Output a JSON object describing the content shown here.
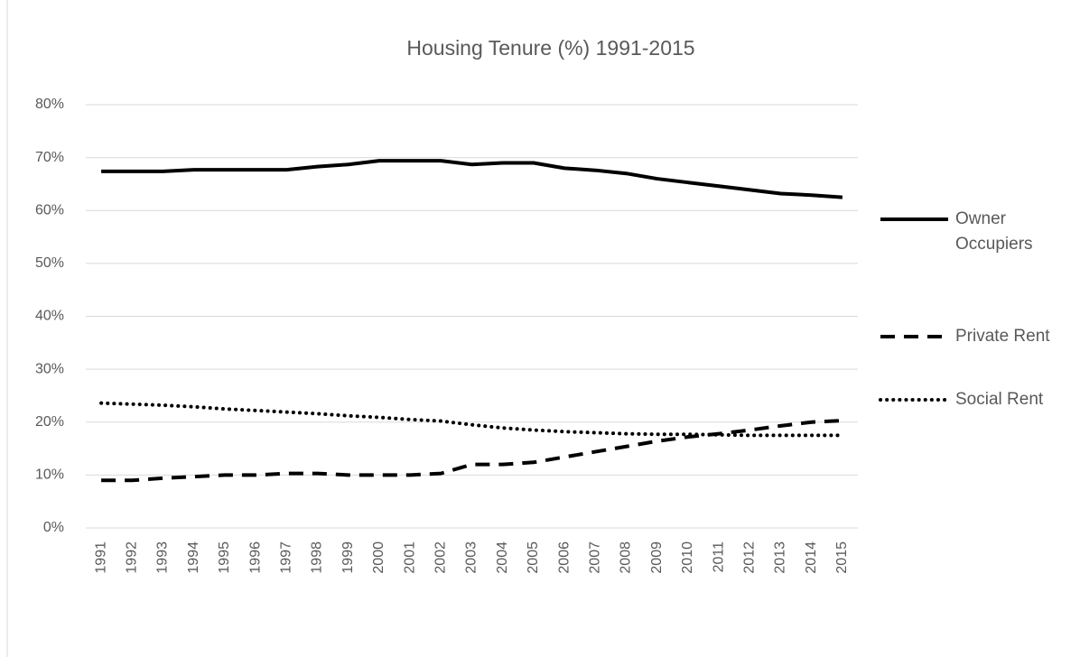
{
  "chart_data": {
    "type": "line",
    "title": "Housing Tenure (%) 1991-2015",
    "categories": [
      "1991",
      "1992",
      "1993",
      "1994",
      "1995",
      "1996",
      "1997",
      "1998",
      "1999",
      "2000",
      "2001",
      "2002",
      "2003",
      "2004",
      "2005",
      "2006",
      "2007",
      "2008",
      "2009",
      "2010",
      "2011",
      "2012",
      "2013",
      "2014",
      "2015"
    ],
    "series": [
      {
        "name": "Owner Occupiers",
        "color": "#000000",
        "dash": "solid",
        "values": [
          67.4,
          67.4,
          67.4,
          67.7,
          67.7,
          67.7,
          67.7,
          68.3,
          68.7,
          69.4,
          69.4,
          69.4,
          68.7,
          69.0,
          69.0,
          68.0,
          67.6,
          67.0,
          66.0,
          65.3,
          64.6,
          63.9,
          63.2,
          62.9,
          62.5
        ]
      },
      {
        "name": "Private Rent",
        "color": "#000000",
        "dash": "dashed",
        "values": [
          9.0,
          9.0,
          9.4,
          9.7,
          10.0,
          10.0,
          10.3,
          10.3,
          10.0,
          10.0,
          10.0,
          10.3,
          12.0,
          12.0,
          12.4,
          13.4,
          14.4,
          15.4,
          16.4,
          17.2,
          17.8,
          18.5,
          19.3,
          20.0,
          20.3
        ]
      },
      {
        "name": "Social Rent",
        "color": "#000000",
        "dash": "dotted",
        "values": [
          23.6,
          23.4,
          23.2,
          22.9,
          22.5,
          22.2,
          21.9,
          21.6,
          21.2,
          20.9,
          20.5,
          20.2,
          19.5,
          18.9,
          18.5,
          18.2,
          18.0,
          17.8,
          17.7,
          17.7,
          17.6,
          17.5,
          17.5,
          17.5,
          17.5
        ]
      }
    ],
    "ylim": [
      0,
      80
    ],
    "yticks": [
      {
        "value": 0,
        "label": "0%"
      },
      {
        "value": 10,
        "label": "10%"
      },
      {
        "value": 20,
        "label": "20%"
      },
      {
        "value": 30,
        "label": "30%"
      },
      {
        "value": 40,
        "label": "40%"
      },
      {
        "value": 50,
        "label": "50%"
      },
      {
        "value": 60,
        "label": "60%"
      },
      {
        "value": 70,
        "label": "70%"
      },
      {
        "value": 80,
        "label": "80%"
      }
    ],
    "grid": true,
    "legend": "right"
  }
}
